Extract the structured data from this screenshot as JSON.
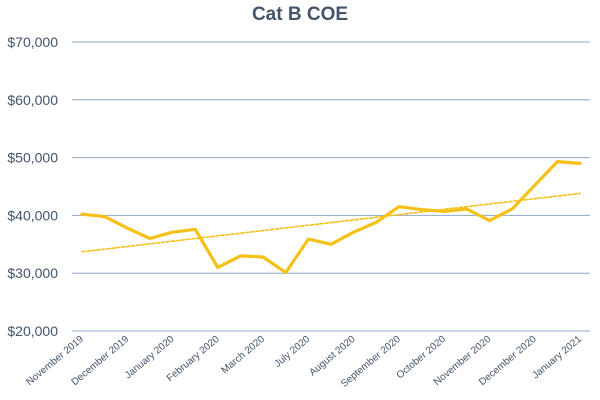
{
  "chart_data": {
    "type": "line",
    "title": "Cat B COE",
    "xlabel": "",
    "ylabel": "",
    "ylim": [
      20000,
      70000
    ],
    "y_ticks": [
      "$20,000",
      "$30,000",
      "$40,000",
      "$50,000",
      "$60,000",
      "$70,000"
    ],
    "y_tick_values": [
      20000,
      30000,
      40000,
      50000,
      60000,
      70000
    ],
    "x_labels": [
      "November 2019",
      "December 2019",
      "January 2020",
      "February 2020",
      "March 2020",
      "July 2020",
      "August 2020",
      "September 2020",
      "October 2020",
      "November 2020",
      "December 2020",
      "January 2021"
    ],
    "grid": true,
    "legend": "none",
    "series": [
      {
        "color": "#f5c118",
        "style": "solid",
        "values": [
          40200,
          39800,
          37800,
          36000,
          37100,
          37600,
          31000,
          33000,
          32800,
          30100,
          35900,
          35000,
          37100,
          38800,
          41500,
          41000,
          40700,
          41100,
          39100,
          41100,
          45200,
          49300,
          49000
        ]
      },
      {
        "color": "#f5c118",
        "style": "dashed",
        "values": [
          33700,
          43800
        ]
      }
    ]
  }
}
